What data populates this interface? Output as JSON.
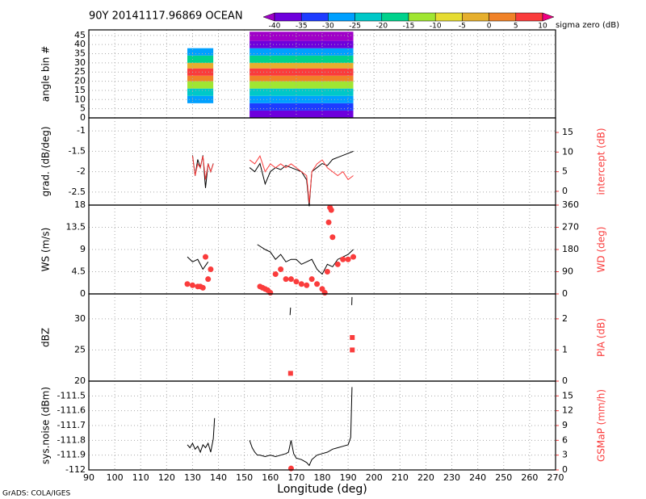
{
  "footer": "GrADS: COLA/IGES",
  "chart_data": [
    {
      "type": "heatmap",
      "title": "90Y 20141117.96869 OCEAN",
      "ylabel": "angle bin #",
      "xlim": [
        90,
        270
      ],
      "ylim": [
        0,
        48
      ],
      "yticks": [
        0,
        5,
        10,
        15,
        20,
        25,
        30,
        35,
        40,
        45
      ],
      "grid": true,
      "colorbar": {
        "label": "sigma zero (dB)",
        "levels": [
          -40,
          -35,
          -30,
          -25,
          -20,
          -15,
          -10,
          -5,
          0,
          5,
          10
        ],
        "colors": [
          "#a000c8",
          "#6e00dc",
          "#1e3cff",
          "#00a0ff",
          "#00c8c8",
          "#00d28c",
          "#a0e632",
          "#e6dc32",
          "#e6af2d",
          "#f08228",
          "#fa3c3c",
          "#f00082"
        ]
      },
      "swaths": [
        {
          "x": [
            128,
            138
          ],
          "y": [
            8,
            38
          ]
        },
        {
          "x": [
            152,
            192
          ],
          "y": [
            0,
            47
          ]
        }
      ],
      "profile": {
        "bins": [
          0,
          4,
          8,
          12,
          16,
          20,
          23,
          27,
          30,
          34,
          38,
          42,
          47
        ],
        "values": [
          -40,
          -33,
          -27,
          -22,
          -15,
          0,
          5,
          -5,
          -18,
          -28,
          -38,
          -42
        ]
      }
    },
    {
      "type": "line",
      "ylabel": "grad. (dB/deg)",
      "y2label": "intercept (dB)",
      "xlim": [
        90,
        270
      ],
      "ylim": [
        -2.82,
        -0.68
      ],
      "yticks": [
        -2.5,
        -2,
        -1.5,
        -1
      ],
      "y2lim": [
        -3.5,
        18.7
      ],
      "y2ticks": [
        0,
        5,
        10,
        15
      ],
      "grid": true,
      "series": [
        {
          "color": "#000000",
          "x": [
            130,
            131,
            132,
            133,
            134,
            135,
            136,
            137,
            138,
            145,
            152,
            154,
            156,
            158,
            160,
            162,
            164,
            166,
            168,
            170,
            172,
            174,
            175,
            176,
            178,
            180,
            182,
            184,
            186,
            188,
            190,
            192
          ],
          "values": [
            -1.6,
            -2.1,
            -1.7,
            -1.9,
            -1.6,
            -2.4,
            -1.8,
            -2.0,
            -1.8,
            null,
            -1.9,
            -2.0,
            -1.8,
            -2.3,
            -2.0,
            -1.9,
            -1.95,
            -1.85,
            -1.9,
            -1.95,
            -2.0,
            -2.2,
            -2.85,
            -2.0,
            -1.9,
            -1.8,
            -1.85,
            -1.7,
            -1.65,
            -1.6,
            -1.55,
            -1.5
          ]
        },
        {
          "color": "#fa3c3c",
          "axis": "y2",
          "x": [
            130,
            131,
            132,
            133,
            134,
            135,
            136,
            137,
            138,
            145,
            152,
            154,
            156,
            158,
            160,
            162,
            164,
            166,
            168,
            170,
            172,
            174,
            175,
            176,
            178,
            180,
            182,
            184,
            186,
            188,
            190,
            192
          ],
          "values": [
            9,
            4,
            7,
            6,
            9,
            3,
            7,
            5,
            7,
            null,
            8,
            7,
            9,
            5,
            7,
            6,
            7,
            6,
            7,
            6,
            5,
            4,
            -3,
            5,
            7,
            8,
            6,
            5,
            4,
            5,
            3,
            4
          ]
        }
      ]
    },
    {
      "type": "line",
      "ylabel": "WS (m/s)",
      "y2label": "WD (deg)",
      "xlim": [
        90,
        270
      ],
      "ylim": [
        0,
        18
      ],
      "yticks": [
        0,
        4.5,
        9,
        13.5,
        18
      ],
      "y2lim": [
        0,
        360
      ],
      "y2ticks": [
        0,
        90,
        180,
        270,
        360
      ],
      "grid": true,
      "series": [
        {
          "color": "#000000",
          "x": [
            128,
            130,
            132,
            134,
            136,
            145,
            155,
            158,
            160,
            162,
            164,
            166,
            168,
            170,
            172,
            174,
            176,
            178,
            180,
            182,
            184,
            186,
            188,
            190,
            192
          ],
          "values": [
            7.5,
            6.5,
            7,
            5,
            6.5,
            null,
            10,
            9,
            8.5,
            7,
            8,
            6.5,
            7,
            7,
            6,
            6.5,
            7,
            5,
            4,
            6,
            5.5,
            7,
            7.5,
            8,
            9
          ]
        },
        {
          "color": "#fa3c3c",
          "axis": "y2",
          "marker": "circle",
          "x": [
            128,
            130,
            132,
            133,
            134,
            135,
            136,
            137,
            156,
            157,
            158,
            159,
            160,
            162,
            164,
            166,
            168,
            170,
            172,
            174,
            176,
            178,
            180,
            181,
            182,
            182.5,
            183,
            183.5,
            184,
            186,
            188,
            190,
            192
          ],
          "values": [
            40,
            35,
            30,
            30,
            25,
            150,
            60,
            100,
            30,
            25,
            20,
            15,
            5,
            80,
            100,
            60,
            60,
            50,
            40,
            35,
            60,
            40,
            20,
            5,
            90,
            290,
            350,
            340,
            230,
            120,
            140,
            140,
            150
          ]
        }
      ]
    },
    {
      "type": "line",
      "ylabel": "dBZ",
      "y2label": "PIA (dB)",
      "xlim": [
        90,
        270
      ],
      "ylim": [
        20,
        34
      ],
      "yticks": [
        20,
        25,
        30
      ],
      "y2lim": [
        0,
        2.8
      ],
      "y2ticks": [
        0,
        1,
        2
      ],
      "grid": true,
      "series": [
        {
          "color": "#000000",
          "x": [
            167.6,
            167.8,
            180,
            191.4,
            191.5
          ],
          "values": [
            30.6,
            31.8,
            null,
            32.2,
            33.5
          ]
        },
        {
          "color": "#fa3c3c",
          "axis": "y2",
          "marker": "square",
          "x": [
            167.8,
            191.6,
            191.6
          ],
          "values": [
            0.25,
            1.0,
            1.4
          ]
        }
      ]
    },
    {
      "type": "line",
      "ylabel": "sys.noise (dBm)",
      "y2label": "GSMaP (mm/h)",
      "xlabel": "Longitude (deg)",
      "xlim": [
        90,
        270
      ],
      "xticks": [
        90,
        100,
        110,
        120,
        130,
        140,
        150,
        160,
        170,
        180,
        190,
        200,
        210,
        220,
        230,
        240,
        250,
        260,
        270
      ],
      "ylim": [
        -112,
        -111.4
      ],
      "yticks": [
        -112,
        -111.9,
        -111.8,
        -111.7,
        -111.6,
        -111.5
      ],
      "y2lim": [
        0,
        18
      ],
      "y2ticks": [
        0,
        3,
        6,
        9,
        12,
        15
      ],
      "grid": true,
      "series": [
        {
          "color": "#000000",
          "x": [
            128,
            129,
            130,
            131,
            132,
            133,
            134,
            135,
            136,
            137,
            138,
            138.5,
            145,
            152,
            153,
            154,
            155,
            156,
            158,
            160,
            162,
            164,
            166,
            167,
            168,
            169,
            170,
            172,
            174,
            175,
            176,
            178,
            180,
            182,
            184,
            186,
            188,
            190,
            191,
            191.5
          ],
          "values": [
            -111.83,
            -111.85,
            -111.82,
            -111.86,
            -111.84,
            -111.88,
            -111.83,
            -111.85,
            -111.82,
            -111.88,
            -111.79,
            -111.65,
            null,
            -111.8,
            -111.85,
            -111.88,
            -111.9,
            -111.9,
            -111.91,
            -111.9,
            -111.91,
            -111.9,
            -111.89,
            -111.88,
            -111.8,
            -111.89,
            -111.92,
            -111.93,
            -111.95,
            -111.97,
            -111.93,
            -111.9,
            -111.89,
            -111.88,
            -111.86,
            -111.85,
            -111.84,
            -111.83,
            -111.78,
            -111.44
          ]
        },
        {
          "color": "#fa3c3c",
          "axis": "y2",
          "marker": "circle",
          "x": [
            168
          ],
          "values": [
            0.3
          ]
        }
      ]
    }
  ]
}
